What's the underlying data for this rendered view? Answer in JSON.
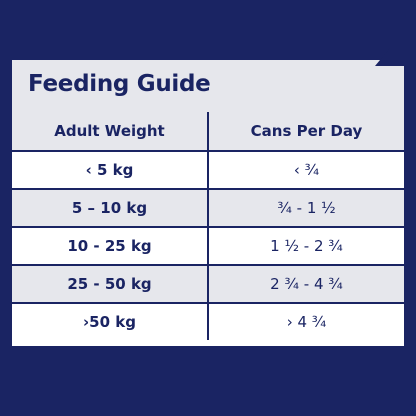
{
  "title": "Feeding Guide",
  "columns": [
    "Adult Weight",
    "Cans Per Day"
  ],
  "rows": [
    {
      "weight": "‹ 5 kg",
      "cans": "‹ ¾"
    },
    {
      "weight": "5 – 10 kg",
      "cans": "¾ - 1 ½"
    },
    {
      "weight": "10 - 25 kg",
      "cans": "1 ½ - 2 ¾"
    },
    {
      "weight": "25 - 50 kg",
      "cans": "2 ¾ - 4 ¾"
    },
    {
      "weight": "›50 kg",
      "cans": "› 4 ¾"
    }
  ],
  "colors": {
    "background": "#1a2463",
    "text": "#1a2463",
    "band": "#e6e7ec",
    "white": "#ffffff"
  }
}
